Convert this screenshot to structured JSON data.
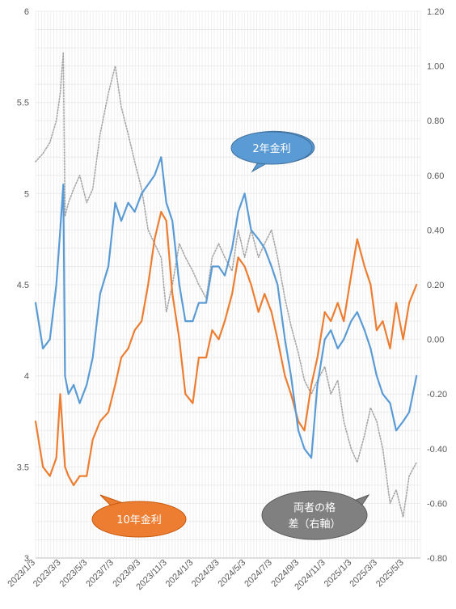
{
  "chart_data": {
    "type": "line",
    "x_tick_labels": [
      "2023/1/3",
      "2023/3/3",
      "2023/5/3",
      "2023/7/3",
      "2023/9/3",
      "2023/11/3",
      "2024/1/3",
      "2024/3/3",
      "2024/5/3",
      "2024/7/3",
      "2024/9/3",
      "2024/11/3",
      "2025/1/3",
      "2025/3/3",
      "2025/5/3"
    ],
    "left_axis": {
      "min": 3,
      "max": 6,
      "ticks": [
        "3",
        "3.5",
        "4",
        "4.5",
        "5",
        "5.5",
        "6"
      ]
    },
    "right_axis": {
      "min": -0.8,
      "max": 1.2,
      "ticks": [
        "-0.80",
        "-0.60",
        "-0.40",
        "-0.20",
        "0.00",
        "0.20",
        "0.40",
        "0.60",
        "0.80",
        "1.00",
        "1.20"
      ]
    },
    "grid": true,
    "series": [
      {
        "name": "2年金利",
        "axis": "left",
        "color": "#5b9bd5",
        "style": "solid",
        "x": [
          "2023-01-03",
          "2023-01-20",
          "2023-02-05",
          "2023-02-20",
          "2023-03-01",
          "2023-03-08",
          "2023-03-12",
          "2023-03-20",
          "2023-04-01",
          "2023-04-15",
          "2023-05-01",
          "2023-05-15",
          "2023-06-01",
          "2023-06-20",
          "2023-07-06",
          "2023-07-20",
          "2023-08-05",
          "2023-08-20",
          "2023-09-05",
          "2023-09-20",
          "2023-10-05",
          "2023-10-20",
          "2023-11-01",
          "2023-11-15",
          "2023-12-01",
          "2023-12-15",
          "2024-01-01",
          "2024-01-15",
          "2024-02-01",
          "2024-02-15",
          "2024-03-01",
          "2024-03-15",
          "2024-04-01",
          "2024-04-15",
          "2024-04-30",
          "2024-05-15",
          "2024-06-01",
          "2024-06-15",
          "2024-07-01",
          "2024-07-15",
          "2024-08-01",
          "2024-08-15",
          "2024-09-01",
          "2024-09-15",
          "2024-10-01",
          "2024-10-15",
          "2024-11-01",
          "2024-11-15",
          "2024-12-01",
          "2024-12-15",
          "2025-01-01",
          "2025-01-15",
          "2025-02-01",
          "2025-02-15",
          "2025-03-01",
          "2025-03-15",
          "2025-04-01",
          "2025-04-15",
          "2025-05-01",
          "2025-05-15",
          "2025-06-01"
        ],
        "values": [
          4.4,
          4.15,
          4.2,
          4.5,
          4.8,
          5.05,
          4.0,
          3.9,
          3.95,
          3.85,
          3.95,
          4.1,
          4.45,
          4.6,
          4.95,
          4.85,
          4.95,
          4.9,
          5.0,
          5.05,
          5.1,
          5.2,
          4.95,
          4.85,
          4.5,
          4.3,
          4.3,
          4.4,
          4.4,
          4.6,
          4.6,
          4.55,
          4.7,
          4.9,
          5.0,
          4.8,
          4.75,
          4.7,
          4.6,
          4.5,
          4.2,
          4.0,
          3.7,
          3.6,
          3.55,
          3.95,
          4.2,
          4.25,
          4.15,
          4.2,
          4.3,
          4.35,
          4.25,
          4.15,
          4.0,
          3.9,
          3.85,
          3.7,
          3.75,
          3.8,
          4.0
        ]
      },
      {
        "name": "10年金利",
        "axis": "left",
        "color": "#ed7d31",
        "style": "solid",
        "x": [
          "2023-01-03",
          "2023-01-20",
          "2023-02-05",
          "2023-02-20",
          "2023-03-01",
          "2023-03-12",
          "2023-03-20",
          "2023-04-01",
          "2023-04-15",
          "2023-05-01",
          "2023-05-15",
          "2023-06-01",
          "2023-06-20",
          "2023-07-06",
          "2023-07-20",
          "2023-08-05",
          "2023-08-20",
          "2023-09-05",
          "2023-09-20",
          "2023-10-05",
          "2023-10-20",
          "2023-11-01",
          "2023-11-15",
          "2023-12-01",
          "2023-12-15",
          "2024-01-01",
          "2024-01-15",
          "2024-02-01",
          "2024-02-15",
          "2024-03-01",
          "2024-03-15",
          "2024-04-01",
          "2024-04-15",
          "2024-04-30",
          "2024-05-15",
          "2024-06-01",
          "2024-06-15",
          "2024-07-01",
          "2024-07-15",
          "2024-08-01",
          "2024-08-15",
          "2024-09-01",
          "2024-09-15",
          "2024-10-01",
          "2024-10-15",
          "2024-11-01",
          "2024-11-15",
          "2024-12-01",
          "2024-12-15",
          "2025-01-01",
          "2025-01-15",
          "2025-02-01",
          "2025-02-15",
          "2025-03-01",
          "2025-03-15",
          "2025-04-01",
          "2025-04-15",
          "2025-05-01",
          "2025-05-15",
          "2025-06-01"
        ],
        "values": [
          3.75,
          3.5,
          3.45,
          3.55,
          3.9,
          3.5,
          3.45,
          3.4,
          3.45,
          3.45,
          3.65,
          3.75,
          3.8,
          3.95,
          4.1,
          4.15,
          4.25,
          4.3,
          4.5,
          4.75,
          4.9,
          4.85,
          4.45,
          4.2,
          3.9,
          3.85,
          4.1,
          4.1,
          4.25,
          4.2,
          4.3,
          4.45,
          4.65,
          4.6,
          4.5,
          4.35,
          4.45,
          4.35,
          4.2,
          4.0,
          3.9,
          3.75,
          3.7,
          3.95,
          4.1,
          4.35,
          4.3,
          4.4,
          4.3,
          4.55,
          4.75,
          4.6,
          4.5,
          4.25,
          4.3,
          4.15,
          4.4,
          4.2,
          4.4,
          4.5
        ]
      },
      {
        "name": "両者の格差（右軸）",
        "axis": "right",
        "color": "#a6a6a6",
        "style": "dotted",
        "x": [
          "2023-01-03",
          "2023-01-20",
          "2023-02-05",
          "2023-02-20",
          "2023-03-01",
          "2023-03-08",
          "2023-03-12",
          "2023-03-20",
          "2023-04-01",
          "2023-04-15",
          "2023-05-01",
          "2023-05-15",
          "2023-06-01",
          "2023-06-20",
          "2023-07-06",
          "2023-07-20",
          "2023-08-05",
          "2023-08-20",
          "2023-09-05",
          "2023-09-20",
          "2023-10-05",
          "2023-10-20",
          "2023-11-01",
          "2023-11-15",
          "2023-12-01",
          "2023-12-15",
          "2024-01-01",
          "2024-01-15",
          "2024-02-01",
          "2024-02-15",
          "2024-03-01",
          "2024-03-15",
          "2024-04-01",
          "2024-04-15",
          "2024-04-30",
          "2024-05-15",
          "2024-06-01",
          "2024-06-15",
          "2024-07-01",
          "2024-07-15",
          "2024-08-01",
          "2024-08-15",
          "2024-09-01",
          "2024-09-15",
          "2024-10-01",
          "2024-10-15",
          "2024-11-01",
          "2024-11-15",
          "2024-12-01",
          "2024-12-15",
          "2025-01-01",
          "2025-01-15",
          "2025-02-01",
          "2025-02-15",
          "2025-03-01",
          "2025-03-15",
          "2025-04-01",
          "2025-04-15",
          "2025-05-01",
          "2025-05-15",
          "2025-06-01"
        ],
        "values": [
          0.65,
          0.68,
          0.72,
          0.8,
          0.9,
          1.05,
          0.45,
          0.5,
          0.55,
          0.6,
          0.5,
          0.55,
          0.75,
          0.9,
          1.0,
          0.85,
          0.75,
          0.65,
          0.55,
          0.4,
          0.35,
          0.3,
          0.1,
          0.2,
          0.35,
          0.3,
          0.25,
          0.2,
          0.15,
          0.3,
          0.35,
          0.3,
          0.25,
          0.4,
          0.3,
          0.4,
          0.3,
          0.35,
          0.4,
          0.3,
          0.15,
          0.05,
          -0.05,
          -0.15,
          -0.2,
          -0.15,
          -0.1,
          -0.2,
          -0.15,
          -0.3,
          -0.4,
          -0.45,
          -0.35,
          -0.25,
          -0.3,
          -0.4,
          -0.6,
          -0.55,
          -0.65,
          -0.5,
          -0.45
        ]
      }
    ],
    "annotations": [
      {
        "text": "2年金利",
        "series": "2年金利"
      },
      {
        "text": "10年金利",
        "series": "10年金利"
      },
      {
        "text_line1": "両者の格",
        "text_line2": "差（右軸）",
        "series": "両者の格差（右軸）"
      }
    ]
  }
}
